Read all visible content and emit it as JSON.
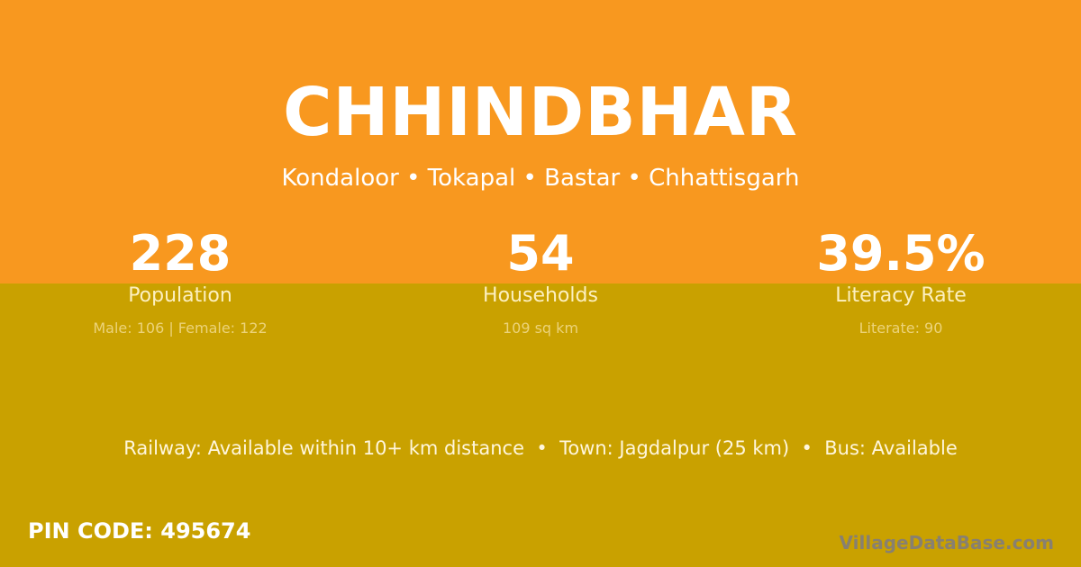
{
  "colors": {
    "top_bg": "#f8981f",
    "bottom_bg": "#c9a100"
  },
  "village": "CHHINDBHAR",
  "location": "Kondaloor • Tokapal • Bastar • Chhattisgarh",
  "stats": [
    {
      "value": "228",
      "label": "Population",
      "sub": "Male: 106 | Female: 122"
    },
    {
      "value": "54",
      "label": "Households",
      "sub": "109 sq km"
    },
    {
      "value": "39.5%",
      "label": "Literacy Rate",
      "sub": "Literate: 90"
    }
  ],
  "connectivity": "Railway: Available within 10+ km distance  •  Town: Jagdalpur (25 km)  •  Bus: Available",
  "pin": "PIN CODE: 495674",
  "brand": "VillageDataBase.com"
}
